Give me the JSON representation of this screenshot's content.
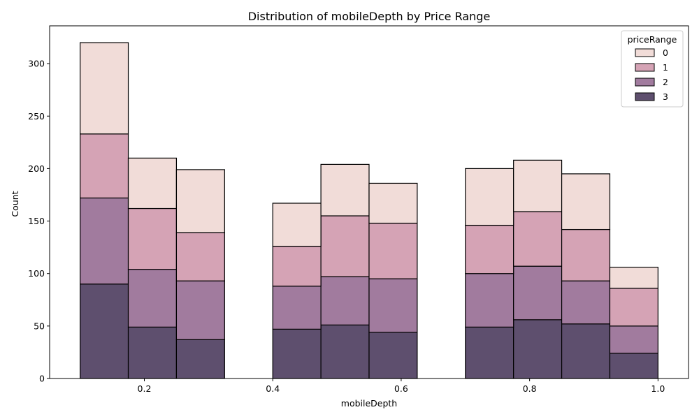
{
  "chart_data": {
    "type": "bar",
    "stacked": true,
    "title": "Distribution of mobileDepth by Price Range",
    "xlabel": "mobileDepth",
    "ylabel": "Count",
    "xlim": [
      0.0525,
      1.0475
    ],
    "ylim": [
      0,
      336
    ],
    "xticks": [
      0.2,
      0.4,
      0.6,
      0.8,
      1.0
    ],
    "xtick_labels": [
      "0.2",
      "0.4",
      "0.6",
      "0.8",
      "1.0"
    ],
    "yticks": [
      0,
      50,
      100,
      150,
      200,
      250,
      300
    ],
    "ytick_labels": [
      "0",
      "50",
      "100",
      "150",
      "200",
      "250",
      "300"
    ],
    "bin_edges": [
      0.1,
      0.175,
      0.25,
      0.325,
      0.4,
      0.475,
      0.55,
      0.625,
      0.7,
      0.775,
      0.85,
      0.925,
      1.0
    ],
    "series": [
      {
        "name": "3",
        "color": "#5e4f6e",
        "values": [
          90,
          49,
          37,
          0,
          47,
          51,
          44,
          0,
          49,
          56,
          52,
          24
        ]
      },
      {
        "name": "2",
        "color": "#a17b9e",
        "values": [
          82,
          55,
          56,
          0,
          41,
          46,
          51,
          0,
          51,
          51,
          41,
          26
        ]
      },
      {
        "name": "1",
        "color": "#d5a3b5",
        "values": [
          61,
          58,
          46,
          0,
          38,
          58,
          53,
          0,
          46,
          52,
          49,
          36
        ]
      },
      {
        "name": "0",
        "color": "#f1dcd8",
        "values": [
          87,
          48,
          60,
          0,
          41,
          49,
          38,
          0,
          54,
          49,
          53,
          20
        ]
      }
    ],
    "legend": {
      "title": "priceRange",
      "placement": "top-right",
      "entries": [
        "0",
        "1",
        "2",
        "3"
      ]
    },
    "grid": false
  }
}
